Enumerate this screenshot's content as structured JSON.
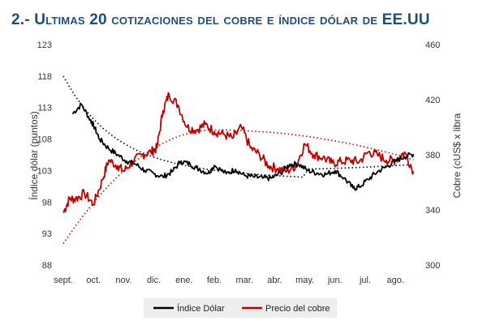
{
  "title": "2.- Ultimas 20 cotizaciones del cobre e índice dólar de EE.UU",
  "chart_data": {
    "type": "line",
    "title": "2.- Ultimas 20 cotizaciones del cobre e índice dólar de EE.UU",
    "x_tick_labels": [
      "sept.",
      "oct.",
      "nov.",
      "dic.",
      "ene.",
      "feb.",
      "mar.",
      "abr.",
      "may.",
      "jun.",
      "jul.",
      "ago."
    ],
    "y_left": {
      "label": "Índice dólar (puntos)",
      "ticks": [
        123,
        118,
        113,
        108,
        103,
        98,
        93,
        88
      ],
      "range": [
        88,
        123
      ]
    },
    "y_right": {
      "label": "Cobre (cUS$ x libra",
      "ticks": [
        460,
        420,
        380,
        340,
        300
      ],
      "range": [
        300,
        460
      ]
    },
    "legend_position": "bottom",
    "grid": false,
    "series": [
      {
        "name": "Índice Dólar",
        "axis": "left",
        "color": "#000000",
        "x": [
          0.3,
          0.6,
          0.9,
          1.0,
          1.2,
          1.5,
          1.8,
          2.1,
          2.4,
          2.7,
          3.0,
          3.3,
          3.6,
          3.9,
          4.2,
          4.5,
          4.8,
          5.0,
          5.4,
          5.7,
          6.0,
          6.3,
          6.6,
          6.9,
          7.2,
          7.5,
          7.8,
          8.1,
          8.4,
          8.7,
          9.0,
          9.3,
          9.6,
          9.8,
          10.1,
          10.4,
          10.7,
          11.0,
          11.3,
          11.6
        ],
        "values": [
          112.0,
          113.5,
          111.0,
          110.2,
          108.0,
          106.5,
          105.5,
          104.5,
          104.0,
          103.0,
          102.5,
          102.0,
          102.8,
          104.5,
          104.0,
          103.2,
          102.6,
          103.8,
          102.5,
          103.2,
          102.2,
          102.0,
          101.8,
          101.8,
          102.6,
          104.0,
          104.0,
          103.0,
          102.6,
          102.4,
          103.0,
          101.8,
          100.2,
          100.4,
          101.6,
          102.8,
          103.6,
          104.5,
          105.2,
          105.6
        ]
      },
      {
        "name": "Precio del cobre",
        "axis": "right",
        "color": "#c00000",
        "x": [
          0.0,
          0.2,
          0.4,
          0.7,
          1.0,
          1.3,
          1.5,
          1.8,
          2.0,
          2.3,
          2.6,
          2.9,
          3.1,
          3.3,
          3.5,
          3.8,
          4.1,
          4.4,
          4.7,
          5.0,
          5.3,
          5.6,
          5.9,
          6.2,
          6.5,
          6.8,
          7.1,
          7.4,
          7.7,
          8.0,
          8.3,
          8.6,
          8.9,
          9.2,
          9.5,
          9.8,
          10.1,
          10.4,
          10.7,
          11.0,
          11.3,
          11.6
        ],
        "values": [
          338,
          348,
          348,
          352,
          344,
          362,
          376,
          372,
          368,
          375,
          380,
          382,
          385,
          412,
          424,
          416,
          400,
          398,
          402,
          397,
          395,
          392,
          400,
          385,
          380,
          372,
          370,
          368,
          372,
          388,
          380,
          378,
          374,
          375,
          376,
          375,
          382,
          380,
          376,
          376,
          382,
          368
        ]
      }
    ],
    "trendlines": "dotted polynomial trendlines (black for Índice Dólar, red for Precio del cobre)"
  },
  "legend": {
    "dollar_label": "Índice Dólar",
    "copper_label": "Precio del cobre"
  },
  "colors": {
    "title": "#1f4e79",
    "dollar": "#000000",
    "copper": "#c00000",
    "legend_bg": "#eeeeee"
  }
}
